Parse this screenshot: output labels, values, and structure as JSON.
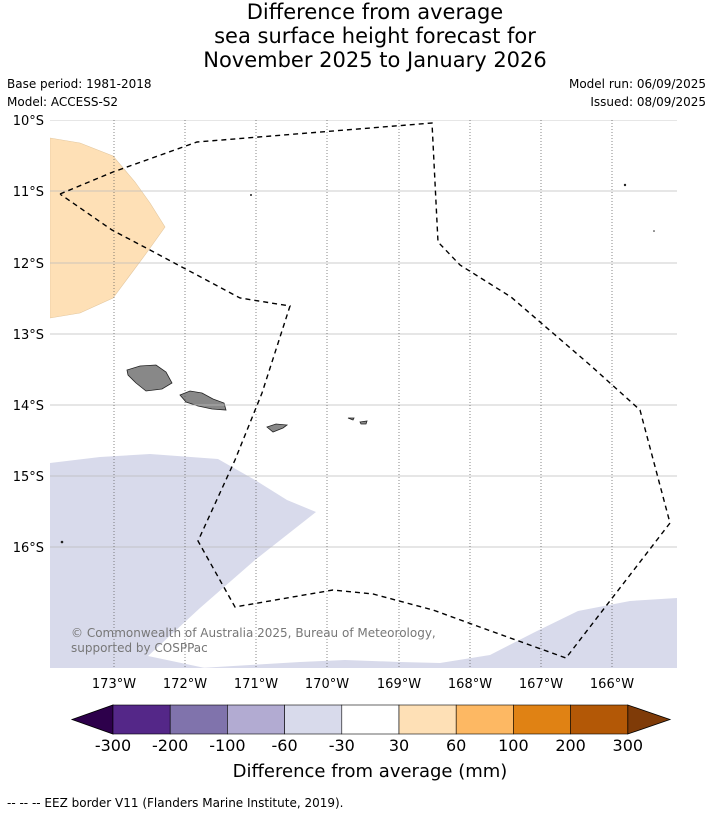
{
  "title": {
    "line1": "Difference from average",
    "line2": "sea surface height forecast for",
    "line3": "November 2025 to January 2026"
  },
  "meta": {
    "base_period": "Base period: 1981-2018",
    "model": "Model: ACCESS-S2",
    "model_run": "Model run: 06/09/2025",
    "issued": "Issued: 08/09/2025"
  },
  "map": {
    "lat_labels": [
      "10°S",
      "11°S",
      "12°S",
      "13°S",
      "14°S",
      "15°S",
      "16°S"
    ],
    "lon_labels": [
      "173°W",
      "172°W",
      "171°W",
      "170°W",
      "169°W",
      "168°W",
      "167°W",
      "166°W"
    ],
    "copyright": "© Commonwealth of Australia 2025, Bureau of Meteorology, supported by COSPPac",
    "land_color": "#888888",
    "positive_anomaly_color": "#fee0b6",
    "negative_anomaly_color": "#d8daeb"
  },
  "colorbar": {
    "title": "Difference from average (mm)",
    "tick_labels": [
      "-300",
      "-200",
      "-100",
      "-60",
      "-30",
      "30",
      "60",
      "100",
      "200",
      "300"
    ],
    "colors": [
      "#2d004b",
      "#542788",
      "#8073ac",
      "#b2abd2",
      "#d8daeb",
      "#ffffff",
      "#fee0b6",
      "#fdb863",
      "#e08214",
      "#b35806",
      "#7f3b08"
    ]
  },
  "footnote": "--  --  -- EEZ border V11 (Flanders Marine Institute, 2019)."
}
